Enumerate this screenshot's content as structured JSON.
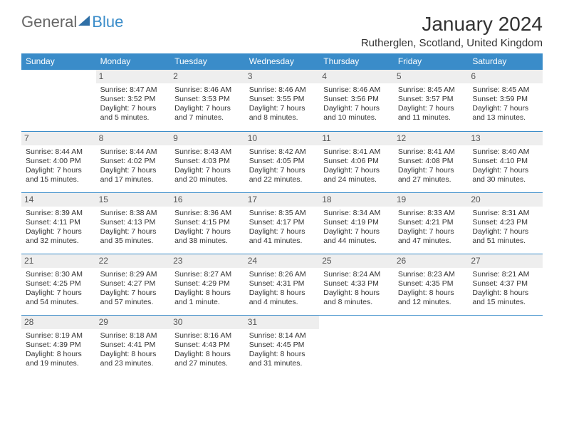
{
  "brand": {
    "part1": "General",
    "part2": "Blue"
  },
  "title": {
    "month": "January 2024",
    "location": "Rutherglen, Scotland, United Kingdom"
  },
  "colors": {
    "header_bg": "#3a8cc9",
    "header_text": "#ffffff",
    "daynum_bg": "#eeeeee",
    "daynum_text": "#555555",
    "rule": "#3a8cc9",
    "body_text": "#333333",
    "logo_gray": "#666666",
    "logo_blue": "#3a8cc9"
  },
  "calendar": {
    "type": "table",
    "day_headers": [
      "Sunday",
      "Monday",
      "Tuesday",
      "Wednesday",
      "Thursday",
      "Friday",
      "Saturday"
    ],
    "weeks": [
      [
        {
          "n": "",
          "sr": "",
          "ss": "",
          "dl": ""
        },
        {
          "n": "1",
          "sr": "Sunrise: 8:47 AM",
          "ss": "Sunset: 3:52 PM",
          "dl": "Daylight: 7 hours and 5 minutes."
        },
        {
          "n": "2",
          "sr": "Sunrise: 8:46 AM",
          "ss": "Sunset: 3:53 PM",
          "dl": "Daylight: 7 hours and 7 minutes."
        },
        {
          "n": "3",
          "sr": "Sunrise: 8:46 AM",
          "ss": "Sunset: 3:55 PM",
          "dl": "Daylight: 7 hours and 8 minutes."
        },
        {
          "n": "4",
          "sr": "Sunrise: 8:46 AM",
          "ss": "Sunset: 3:56 PM",
          "dl": "Daylight: 7 hours and 10 minutes."
        },
        {
          "n": "5",
          "sr": "Sunrise: 8:45 AM",
          "ss": "Sunset: 3:57 PM",
          "dl": "Daylight: 7 hours and 11 minutes."
        },
        {
          "n": "6",
          "sr": "Sunrise: 8:45 AM",
          "ss": "Sunset: 3:59 PM",
          "dl": "Daylight: 7 hours and 13 minutes."
        }
      ],
      [
        {
          "n": "7",
          "sr": "Sunrise: 8:44 AM",
          "ss": "Sunset: 4:00 PM",
          "dl": "Daylight: 7 hours and 15 minutes."
        },
        {
          "n": "8",
          "sr": "Sunrise: 8:44 AM",
          "ss": "Sunset: 4:02 PM",
          "dl": "Daylight: 7 hours and 17 minutes."
        },
        {
          "n": "9",
          "sr": "Sunrise: 8:43 AM",
          "ss": "Sunset: 4:03 PM",
          "dl": "Daylight: 7 hours and 20 minutes."
        },
        {
          "n": "10",
          "sr": "Sunrise: 8:42 AM",
          "ss": "Sunset: 4:05 PM",
          "dl": "Daylight: 7 hours and 22 minutes."
        },
        {
          "n": "11",
          "sr": "Sunrise: 8:41 AM",
          "ss": "Sunset: 4:06 PM",
          "dl": "Daylight: 7 hours and 24 minutes."
        },
        {
          "n": "12",
          "sr": "Sunrise: 8:41 AM",
          "ss": "Sunset: 4:08 PM",
          "dl": "Daylight: 7 hours and 27 minutes."
        },
        {
          "n": "13",
          "sr": "Sunrise: 8:40 AM",
          "ss": "Sunset: 4:10 PM",
          "dl": "Daylight: 7 hours and 30 minutes."
        }
      ],
      [
        {
          "n": "14",
          "sr": "Sunrise: 8:39 AM",
          "ss": "Sunset: 4:11 PM",
          "dl": "Daylight: 7 hours and 32 minutes."
        },
        {
          "n": "15",
          "sr": "Sunrise: 8:38 AM",
          "ss": "Sunset: 4:13 PM",
          "dl": "Daylight: 7 hours and 35 minutes."
        },
        {
          "n": "16",
          "sr": "Sunrise: 8:36 AM",
          "ss": "Sunset: 4:15 PM",
          "dl": "Daylight: 7 hours and 38 minutes."
        },
        {
          "n": "17",
          "sr": "Sunrise: 8:35 AM",
          "ss": "Sunset: 4:17 PM",
          "dl": "Daylight: 7 hours and 41 minutes."
        },
        {
          "n": "18",
          "sr": "Sunrise: 8:34 AM",
          "ss": "Sunset: 4:19 PM",
          "dl": "Daylight: 7 hours and 44 minutes."
        },
        {
          "n": "19",
          "sr": "Sunrise: 8:33 AM",
          "ss": "Sunset: 4:21 PM",
          "dl": "Daylight: 7 hours and 47 minutes."
        },
        {
          "n": "20",
          "sr": "Sunrise: 8:31 AM",
          "ss": "Sunset: 4:23 PM",
          "dl": "Daylight: 7 hours and 51 minutes."
        }
      ],
      [
        {
          "n": "21",
          "sr": "Sunrise: 8:30 AM",
          "ss": "Sunset: 4:25 PM",
          "dl": "Daylight: 7 hours and 54 minutes."
        },
        {
          "n": "22",
          "sr": "Sunrise: 8:29 AM",
          "ss": "Sunset: 4:27 PM",
          "dl": "Daylight: 7 hours and 57 minutes."
        },
        {
          "n": "23",
          "sr": "Sunrise: 8:27 AM",
          "ss": "Sunset: 4:29 PM",
          "dl": "Daylight: 8 hours and 1 minute."
        },
        {
          "n": "24",
          "sr": "Sunrise: 8:26 AM",
          "ss": "Sunset: 4:31 PM",
          "dl": "Daylight: 8 hours and 4 minutes."
        },
        {
          "n": "25",
          "sr": "Sunrise: 8:24 AM",
          "ss": "Sunset: 4:33 PM",
          "dl": "Daylight: 8 hours and 8 minutes."
        },
        {
          "n": "26",
          "sr": "Sunrise: 8:23 AM",
          "ss": "Sunset: 4:35 PM",
          "dl": "Daylight: 8 hours and 12 minutes."
        },
        {
          "n": "27",
          "sr": "Sunrise: 8:21 AM",
          "ss": "Sunset: 4:37 PM",
          "dl": "Daylight: 8 hours and 15 minutes."
        }
      ],
      [
        {
          "n": "28",
          "sr": "Sunrise: 8:19 AM",
          "ss": "Sunset: 4:39 PM",
          "dl": "Daylight: 8 hours and 19 minutes."
        },
        {
          "n": "29",
          "sr": "Sunrise: 8:18 AM",
          "ss": "Sunset: 4:41 PM",
          "dl": "Daylight: 8 hours and 23 minutes."
        },
        {
          "n": "30",
          "sr": "Sunrise: 8:16 AM",
          "ss": "Sunset: 4:43 PM",
          "dl": "Daylight: 8 hours and 27 minutes."
        },
        {
          "n": "31",
          "sr": "Sunrise: 8:14 AM",
          "ss": "Sunset: 4:45 PM",
          "dl": "Daylight: 8 hours and 31 minutes."
        },
        {
          "n": "",
          "sr": "",
          "ss": "",
          "dl": ""
        },
        {
          "n": "",
          "sr": "",
          "ss": "",
          "dl": ""
        },
        {
          "n": "",
          "sr": "",
          "ss": "",
          "dl": ""
        }
      ]
    ]
  }
}
